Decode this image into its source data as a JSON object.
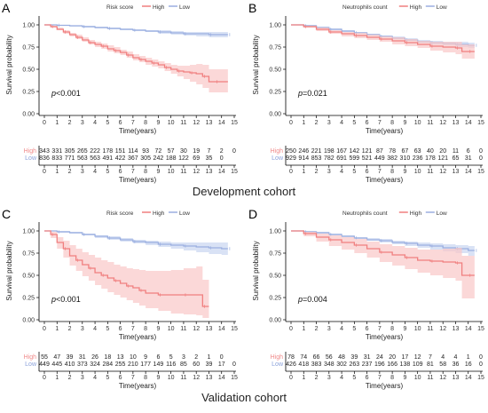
{
  "colors": {
    "high": "#f07f7f",
    "low": "#9aaee0",
    "high_band": "#f9c7c7",
    "low_band": "#c9d5f1",
    "text_high": "#f08a8a",
    "text_low": "#8aa0da"
  },
  "cohorts": {
    "development": "Development cohort",
    "validation": "Validation cohort"
  },
  "chart_data": [
    {
      "letter": "A",
      "type": "line",
      "legend": {
        "title": "Risk score",
        "labels": [
          "High",
          "Low"
        ],
        "placement": "top"
      },
      "xlabel": "Time(years)",
      "ylabel": "Survival probability",
      "xlim": [
        0,
        15
      ],
      "ylim": [
        0,
        1
      ],
      "xticks": [
        "0",
        "1",
        "2",
        "3",
        "4",
        "5",
        "6",
        "7",
        "8",
        "9",
        "10",
        "11",
        "12",
        "13",
        "14",
        "15"
      ],
      "yticks": [
        "0.00",
        "0.25",
        "0.50",
        "0.75",
        "1.00"
      ],
      "pvalue": "p<0.001",
      "series": [
        {
          "name": "High",
          "x": [
            0,
            0.5,
            1,
            1.5,
            2,
            2.5,
            3,
            3.5,
            4,
            4.5,
            5,
            5.5,
            6,
            6.5,
            7,
            7.5,
            8,
            8.5,
            9,
            9.5,
            10,
            10.5,
            11,
            11.5,
            12,
            12.5,
            13,
            13.5,
            14.5
          ],
          "y": [
            1,
            0.98,
            0.95,
            0.92,
            0.89,
            0.86,
            0.83,
            0.8,
            0.78,
            0.76,
            0.73,
            0.71,
            0.69,
            0.66,
            0.63,
            0.61,
            0.59,
            0.57,
            0.55,
            0.52,
            0.5,
            0.48,
            0.47,
            0.46,
            0.45,
            0.42,
            0.36,
            0.36,
            0.36
          ],
          "lower": [
            1,
            0.97,
            0.94,
            0.9,
            0.87,
            0.84,
            0.81,
            0.78,
            0.75,
            0.73,
            0.7,
            0.68,
            0.66,
            0.63,
            0.6,
            0.58,
            0.55,
            0.53,
            0.51,
            0.48,
            0.45,
            0.42,
            0.39,
            0.36,
            0.33,
            0.29,
            0.24,
            0.24,
            0.24
          ],
          "upper": [
            1,
            0.99,
            0.97,
            0.94,
            0.91,
            0.89,
            0.86,
            0.83,
            0.81,
            0.79,
            0.77,
            0.75,
            0.72,
            0.7,
            0.67,
            0.65,
            0.63,
            0.61,
            0.59,
            0.57,
            0.55,
            0.54,
            0.54,
            0.55,
            0.56,
            0.55,
            0.5,
            0.5,
            0.5
          ]
        },
        {
          "name": "Low",
          "x": [
            0,
            1,
            2,
            3,
            4,
            5,
            6,
            7,
            8,
            9,
            10,
            11,
            12,
            13,
            14,
            14.5
          ],
          "y": [
            1,
            0.995,
            0.99,
            0.98,
            0.97,
            0.96,
            0.95,
            0.94,
            0.93,
            0.92,
            0.91,
            0.9,
            0.9,
            0.89,
            0.89,
            0.89
          ],
          "lower": [
            1,
            0.99,
            0.98,
            0.97,
            0.96,
            0.95,
            0.94,
            0.93,
            0.92,
            0.9,
            0.89,
            0.88,
            0.87,
            0.86,
            0.86,
            0.86
          ],
          "upper": [
            1,
            1,
            0.995,
            0.99,
            0.98,
            0.97,
            0.96,
            0.95,
            0.94,
            0.94,
            0.93,
            0.92,
            0.92,
            0.92,
            0.92,
            0.92
          ]
        }
      ],
      "risk_table": {
        "rows": [
          "High",
          "Low"
        ],
        "High": [
          "343",
          "331",
          "305",
          "265",
          "222",
          "178",
          "151",
          "114",
          "93",
          "72",
          "57",
          "30",
          "19",
          "7",
          "2",
          "0"
        ],
        "Low": [
          "836",
          "833",
          "771",
          "563",
          "563",
          "491",
          "422",
          "367",
          "305",
          "242",
          "188",
          "122",
          "69",
          "35",
          "0",
          ""
        ]
      }
    },
    {
      "letter": "B",
      "type": "line",
      "legend": {
        "title": "Neutrophils count",
        "labels": [
          "High",
          "Low"
        ],
        "placement": "top"
      },
      "xlabel": "Time(years)",
      "ylabel": "Survival probability",
      "xlim": [
        0,
        15
      ],
      "ylim": [
        0,
        1
      ],
      "xticks": [
        "0",
        "1",
        "2",
        "3",
        "4",
        "5",
        "6",
        "7",
        "8",
        "9",
        "10",
        "11",
        "12",
        "13",
        "14",
        "15"
      ],
      "yticks": [
        "0.00",
        "0.25",
        "0.50",
        "0.75",
        "1.00"
      ],
      "pvalue": "p=0.021",
      "series": [
        {
          "name": "High",
          "x": [
            0,
            1,
            2,
            3,
            4,
            5,
            6,
            7,
            8,
            9,
            10,
            11,
            12,
            13,
            13.5,
            14,
            14.5
          ],
          "y": [
            1,
            0.98,
            0.95,
            0.92,
            0.9,
            0.88,
            0.86,
            0.84,
            0.82,
            0.8,
            0.78,
            0.76,
            0.75,
            0.74,
            0.7,
            0.7,
            0.7
          ],
          "lower": [
            1,
            0.97,
            0.93,
            0.9,
            0.87,
            0.85,
            0.83,
            0.81,
            0.78,
            0.76,
            0.74,
            0.71,
            0.69,
            0.67,
            0.62,
            0.62,
            0.62
          ],
          "upper": [
            1,
            0.99,
            0.97,
            0.94,
            0.92,
            0.91,
            0.89,
            0.87,
            0.86,
            0.84,
            0.82,
            0.81,
            0.81,
            0.81,
            0.78,
            0.78,
            0.78
          ]
        },
        {
          "name": "Low",
          "x": [
            0,
            1,
            2,
            3,
            4,
            5,
            6,
            7,
            8,
            9,
            10,
            11,
            12,
            13,
            14,
            14.5
          ],
          "y": [
            1,
            0.99,
            0.97,
            0.95,
            0.93,
            0.91,
            0.89,
            0.87,
            0.85,
            0.83,
            0.81,
            0.8,
            0.79,
            0.78,
            0.77,
            0.77
          ],
          "lower": [
            1,
            0.98,
            0.96,
            0.94,
            0.92,
            0.9,
            0.88,
            0.86,
            0.84,
            0.82,
            0.8,
            0.78,
            0.77,
            0.75,
            0.74,
            0.74
          ],
          "upper": [
            1,
            1,
            0.98,
            0.96,
            0.94,
            0.92,
            0.9,
            0.88,
            0.87,
            0.85,
            0.83,
            0.82,
            0.81,
            0.81,
            0.8,
            0.8
          ]
        }
      ],
      "risk_table": {
        "rows": [
          "High",
          "Low"
        ],
        "High": [
          "250",
          "246",
          "221",
          "198",
          "167",
          "142",
          "121",
          "87",
          "78",
          "67",
          "63",
          "40",
          "20",
          "11",
          "6",
          "0"
        ],
        "Low": [
          "929",
          "914",
          "853",
          "782",
          "691",
          "599",
          "521",
          "449",
          "382",
          "310",
          "236",
          "178",
          "121",
          "65",
          "31",
          "0"
        ]
      }
    },
    {
      "letter": "C",
      "type": "line",
      "legend": {
        "title": "Risk score",
        "labels": [
          "High",
          "Low"
        ],
        "placement": "top"
      },
      "xlabel": "Time(years)",
      "ylabel": "Survival probability",
      "xlim": [
        0,
        15
      ],
      "ylim": [
        0,
        1
      ],
      "xticks": [
        "0",
        "1",
        "2",
        "3",
        "4",
        "5",
        "6",
        "7",
        "8",
        "9",
        "10",
        "11",
        "12",
        "13",
        "14",
        "15"
      ],
      "yticks": [
        "0.00",
        "0.25",
        "0.50",
        "0.75",
        "1.00"
      ],
      "pvalue": "p<0.001",
      "series": [
        {
          "name": "High",
          "x": [
            0,
            0.5,
            1,
            1.5,
            2,
            2.5,
            3,
            3.5,
            4,
            4.5,
            5,
            5.5,
            6,
            6.5,
            7,
            7.5,
            8,
            9,
            10,
            11,
            12,
            12.5,
            13
          ],
          "y": [
            1,
            0.96,
            0.87,
            0.8,
            0.72,
            0.67,
            0.62,
            0.58,
            0.53,
            0.5,
            0.47,
            0.44,
            0.41,
            0.38,
            0.36,
            0.33,
            0.3,
            0.28,
            0.28,
            0.28,
            0.28,
            0.15,
            0.15
          ],
          "lower": [
            1,
            0.92,
            0.8,
            0.7,
            0.61,
            0.55,
            0.49,
            0.44,
            0.39,
            0.35,
            0.31,
            0.28,
            0.25,
            0.22,
            0.19,
            0.16,
            0.13,
            0.1,
            0.07,
            0.06,
            0.05,
            0.02,
            0.02
          ],
          "upper": [
            1,
            0.99,
            0.93,
            0.89,
            0.84,
            0.8,
            0.76,
            0.73,
            0.7,
            0.67,
            0.65,
            0.62,
            0.6,
            0.58,
            0.57,
            0.56,
            0.55,
            0.55,
            0.56,
            0.58,
            0.6,
            0.45,
            0.45
          ]
        },
        {
          "name": "Low",
          "x": [
            0,
            1,
            2,
            3,
            4,
            5,
            6,
            7,
            8,
            9,
            10,
            11,
            12,
            13,
            14,
            14.5
          ],
          "y": [
            1,
            0.99,
            0.98,
            0.96,
            0.94,
            0.92,
            0.9,
            0.88,
            0.87,
            0.85,
            0.84,
            0.83,
            0.82,
            0.81,
            0.8,
            0.8
          ],
          "lower": [
            1,
            0.98,
            0.97,
            0.95,
            0.92,
            0.9,
            0.88,
            0.86,
            0.84,
            0.82,
            0.8,
            0.78,
            0.76,
            0.74,
            0.73,
            0.73
          ],
          "upper": [
            1,
            1,
            0.99,
            0.97,
            0.95,
            0.94,
            0.92,
            0.9,
            0.89,
            0.88,
            0.87,
            0.87,
            0.87,
            0.87,
            0.87,
            0.87
          ]
        }
      ],
      "risk_table": {
        "rows": [
          "High",
          "Low"
        ],
        "High": [
          "55",
          "47",
          "39",
          "31",
          "26",
          "18",
          "13",
          "10",
          "9",
          "6",
          "5",
          "3",
          "2",
          "1",
          "0",
          ""
        ],
        "Low": [
          "449",
          "445",
          "410",
          "373",
          "324",
          "284",
          "255",
          "210",
          "177",
          "149",
          "116",
          "85",
          "60",
          "39",
          "17",
          "0"
        ]
      }
    },
    {
      "letter": "D",
      "type": "line",
      "legend": {
        "title": "Neutrophils count",
        "labels": [
          "High",
          "Low"
        ],
        "placement": "top"
      },
      "xlabel": "Time(years)",
      "ylabel": "Survival probability",
      "xlim": [
        0,
        15
      ],
      "ylim": [
        0,
        1
      ],
      "xticks": [
        "0",
        "1",
        "2",
        "3",
        "4",
        "5",
        "6",
        "7",
        "8",
        "9",
        "10",
        "11",
        "12",
        "13",
        "14",
        "15"
      ],
      "yticks": [
        "0.00",
        "0.25",
        "0.50",
        "0.75",
        "1.00"
      ],
      "pvalue": "p=0.004",
      "series": [
        {
          "name": "High",
          "x": [
            0,
            1,
            2,
            3,
            4,
            5,
            6,
            7,
            8,
            9,
            10,
            11,
            12,
            13,
            13.5,
            14,
            14.5
          ],
          "y": [
            1,
            0.97,
            0.93,
            0.9,
            0.87,
            0.84,
            0.8,
            0.76,
            0.73,
            0.7,
            0.67,
            0.66,
            0.65,
            0.64,
            0.5,
            0.5,
            0.5
          ],
          "lower": [
            1,
            0.94,
            0.88,
            0.83,
            0.79,
            0.75,
            0.7,
            0.65,
            0.61,
            0.57,
            0.53,
            0.5,
            0.47,
            0.44,
            0.24,
            0.24,
            0.24
          ],
          "upper": [
            1,
            0.99,
            0.97,
            0.95,
            0.93,
            0.91,
            0.88,
            0.85,
            0.83,
            0.81,
            0.79,
            0.79,
            0.8,
            0.81,
            0.72,
            0.72,
            0.72
          ]
        },
        {
          "name": "Low",
          "x": [
            0,
            1,
            2,
            3,
            4,
            5,
            6,
            7,
            8,
            9,
            10,
            11,
            12,
            13,
            14,
            14.5
          ],
          "y": [
            1,
            0.99,
            0.98,
            0.96,
            0.94,
            0.92,
            0.9,
            0.89,
            0.87,
            0.86,
            0.84,
            0.83,
            0.81,
            0.8,
            0.78,
            0.78
          ],
          "lower": [
            1,
            0.98,
            0.97,
            0.95,
            0.93,
            0.91,
            0.89,
            0.87,
            0.85,
            0.83,
            0.81,
            0.79,
            0.77,
            0.75,
            0.72,
            0.72
          ],
          "upper": [
            1,
            1,
            0.99,
            0.97,
            0.95,
            0.93,
            0.92,
            0.91,
            0.89,
            0.88,
            0.87,
            0.86,
            0.85,
            0.84,
            0.83,
            0.83
          ]
        }
      ],
      "risk_table": {
        "rows": [
          "High",
          "Low"
        ],
        "High": [
          "78",
          "74",
          "66",
          "56",
          "48",
          "39",
          "31",
          "24",
          "20",
          "17",
          "12",
          "7",
          "4",
          "4",
          "1",
          "0"
        ],
        "Low": [
          "426",
          "418",
          "383",
          "348",
          "302",
          "263",
          "237",
          "196",
          "166",
          "138",
          "109",
          "81",
          "58",
          "36",
          "16",
          "0"
        ]
      }
    }
  ]
}
